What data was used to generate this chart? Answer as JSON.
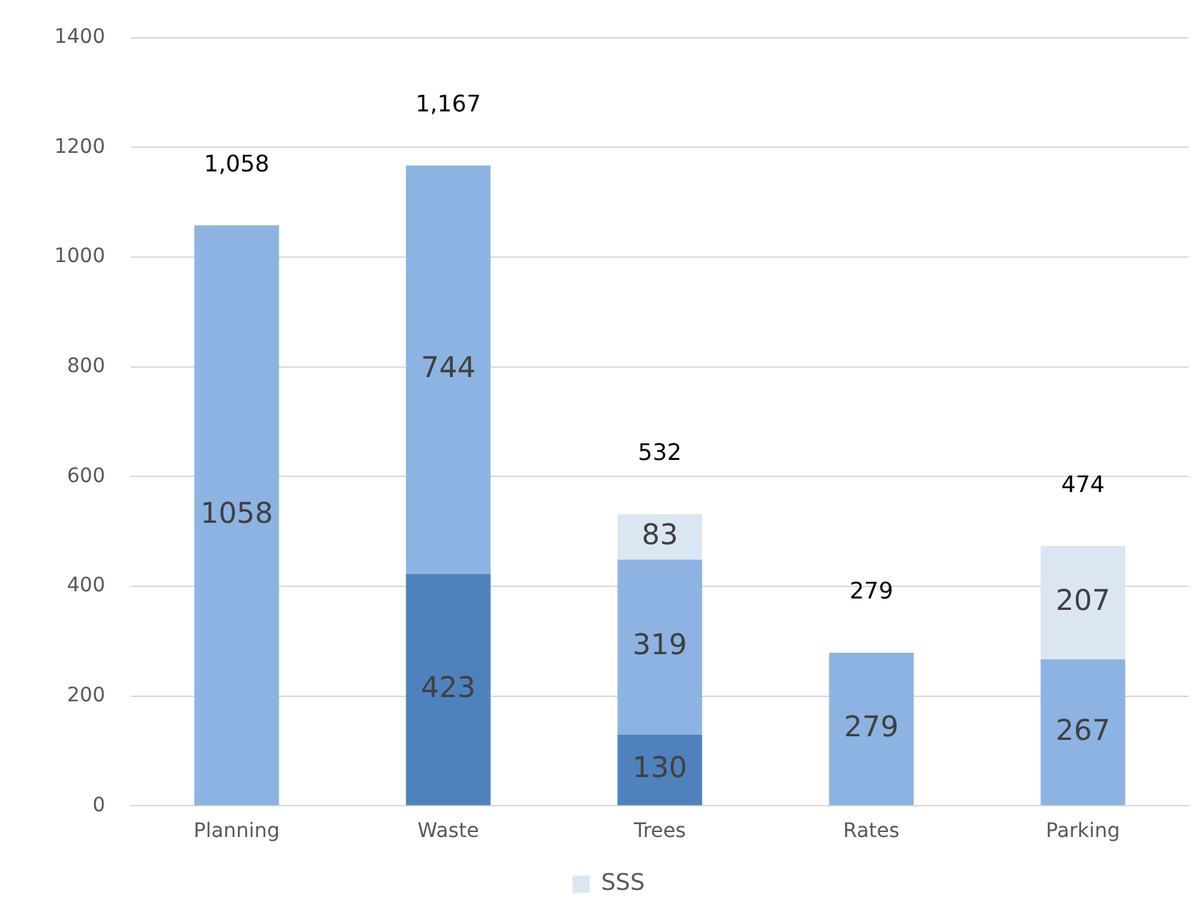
{
  "chart_data": {
    "type": "bar",
    "stacked": true,
    "categories": [
      "Planning",
      "Waste",
      "Trees",
      "Rates",
      "Parking"
    ],
    "series": [
      {
        "color": "#4f81bd",
        "values": [
          null,
          423,
          130,
          null,
          null
        ]
      },
      {
        "color": "#8db3e2",
        "values": [
          1058,
          744,
          319,
          279,
          267
        ]
      },
      {
        "name": "SSS",
        "color": "#dce6f2",
        "values": [
          null,
          null,
          83,
          null,
          207
        ]
      }
    ],
    "ylim": [
      0,
      1400
    ],
    "yticks": [
      0,
      200,
      400,
      600,
      800,
      1000,
      1200,
      1400
    ],
    "grid": "y",
    "legend": "bottom",
    "data_labels": true,
    "totals": [
      "1,058",
      "1,167",
      "532",
      "279",
      "474"
    ]
  }
}
